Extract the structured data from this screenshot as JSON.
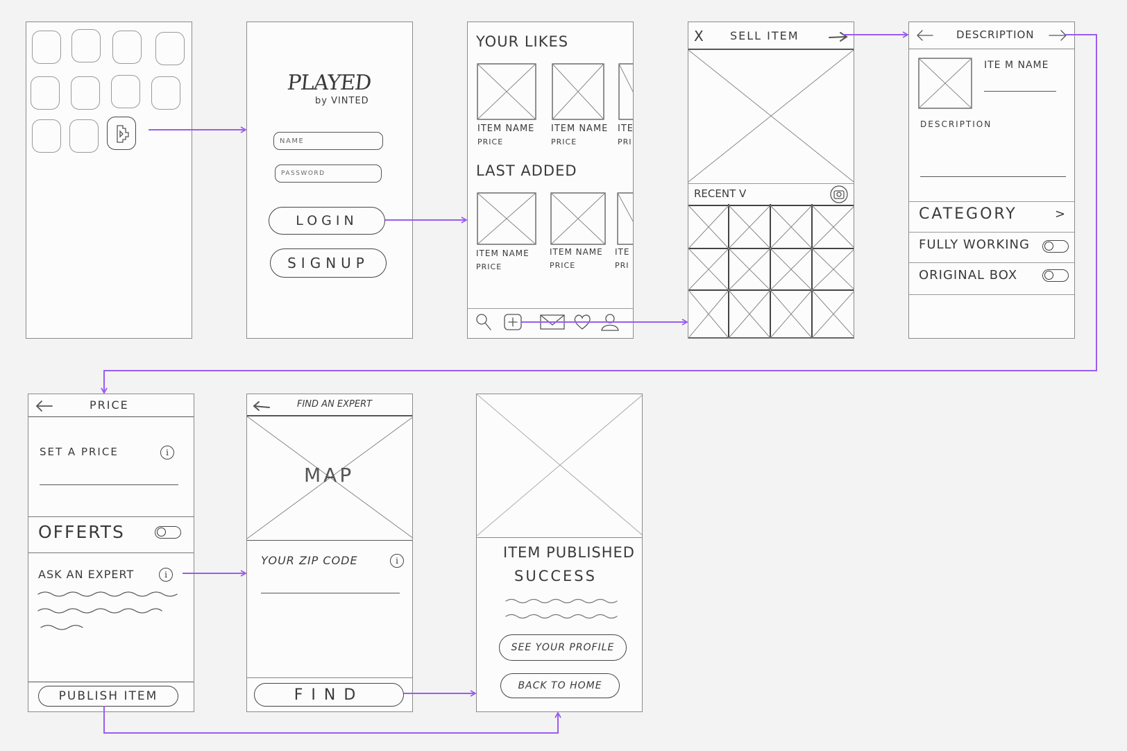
{
  "colors": {
    "flow": "#9a5cf0",
    "sketch": "#444444",
    "paper": "#fcfcfc",
    "background": "#f3f3f3"
  },
  "login": {
    "logo_main": "PLAYED",
    "logo_sub": "by VINTED",
    "name_placeholder": "NAME",
    "password_placeholder": "PASSWORD",
    "login_label": "LOGIN",
    "signup_label": "SIGNUP"
  },
  "feed": {
    "likes_title": "YOUR LIKES",
    "last_added_title": "LAST ADDED",
    "item_name": "ITEM NAME",
    "item_price": "PRICE",
    "item_name_cut": "ITE",
    "item_price_cut": "PRI",
    "tabbar_icons": [
      "search-icon",
      "add-icon",
      "mail-icon",
      "heart-icon",
      "profile-icon"
    ]
  },
  "sell": {
    "close_label": "X",
    "title": "SELL ITEM",
    "recent_label": "RECENT V"
  },
  "description": {
    "title": "DESCRIPTION",
    "item_name_label": "ITE M NAME",
    "description_label": "DESCRIPTION",
    "category_label": "CATEGORY",
    "chevron": ">",
    "fully_working_label": "FULLY WORKING",
    "original_box_label": "ORIGINAL BOX"
  },
  "price": {
    "title": "PRICE",
    "set_price_label": "SET A PRICE",
    "offers_label": "OFFERTS",
    "ask_expert_label": "ASK AN EXPERT",
    "info_glyph": "i",
    "publish_label": "PUBLISH ITEM"
  },
  "expert": {
    "title": "FIND AN EXPERT",
    "map_label": "MAP",
    "zip_label": "YOUR ZIP CODE",
    "find_label": "FIND"
  },
  "success": {
    "line1": "ITEM PUBLISHED",
    "line2": "SUCCESS",
    "profile_label": "SEE YOUR PROFILE",
    "home_label": "BACK TO HOME"
  }
}
